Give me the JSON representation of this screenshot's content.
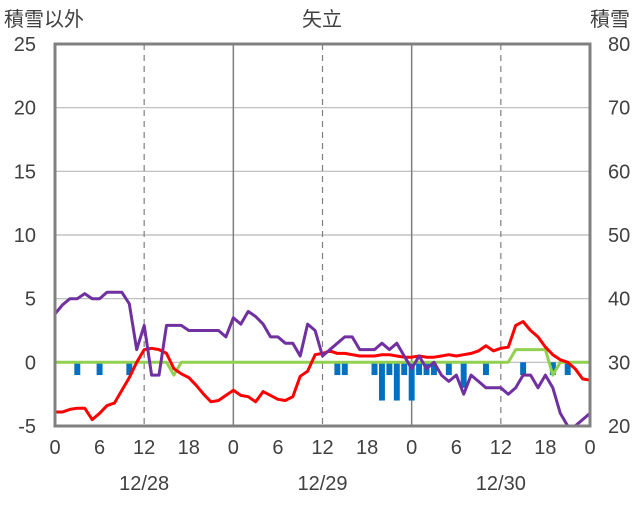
{
  "chart_data": {
    "type": "line",
    "title": "矢立",
    "ylabel_left": "積雪以外",
    "ylabel_right": "積雪",
    "ylim_left": [
      -5,
      25
    ],
    "ylim_right": [
      20,
      80
    ],
    "yticks_left": [
      -5,
      0,
      5,
      10,
      15,
      20,
      25
    ],
    "yticks_right": [
      20,
      30,
      40,
      50,
      60,
      70,
      80
    ],
    "xlim_hours": [
      0,
      72
    ],
    "xtick_labels": [
      "0",
      "6",
      "12",
      "18",
      "0",
      "6",
      "12",
      "18",
      "0",
      "6",
      "12",
      "18",
      "0"
    ],
    "date_labels": [
      {
        "label": "12/28",
        "hour": 12
      },
      {
        "label": "12/29",
        "hour": 36
      },
      {
        "label": "12/30",
        "hour": 60
      }
    ],
    "day_boundaries": [
      24,
      48
    ],
    "dashed_grid_hours": [
      12,
      36,
      60
    ],
    "series": [
      {
        "name": "red",
        "color": "#ff0000",
        "axis": "left",
        "points": [
          [
            0,
            -3.9
          ],
          [
            1,
            -3.9
          ],
          [
            2,
            -3.7
          ],
          [
            3,
            -3.6
          ],
          [
            4,
            -3.6
          ],
          [
            5,
            -4.5
          ],
          [
            6,
            -4.0
          ],
          [
            7,
            -3.4
          ],
          [
            8,
            -3.2
          ],
          [
            9,
            -2.2
          ],
          [
            10,
            -1.2
          ],
          [
            11,
            0.0
          ],
          [
            12,
            1.0
          ],
          [
            13,
            1.1
          ],
          [
            14,
            1.0
          ],
          [
            15,
            0.7
          ],
          [
            16,
            -0.5
          ],
          [
            17,
            -0.9
          ],
          [
            18,
            -1.2
          ],
          [
            19,
            -1.8
          ],
          [
            20,
            -2.5
          ],
          [
            21,
            -3.1
          ],
          [
            22,
            -3.0
          ],
          [
            23,
            -2.6
          ],
          [
            24,
            -2.2
          ],
          [
            25,
            -2.6
          ],
          [
            26,
            -2.7
          ],
          [
            27,
            -3.1
          ],
          [
            28,
            -2.3
          ],
          [
            29,
            -2.6
          ],
          [
            30,
            -2.9
          ],
          [
            31,
            -3.0
          ],
          [
            32,
            -2.7
          ],
          [
            33,
            -1.1
          ],
          [
            34,
            -0.7
          ],
          [
            35,
            0.6
          ],
          [
            36,
            0.7
          ],
          [
            37,
            0.9
          ],
          [
            38,
            0.7
          ],
          [
            39,
            0.7
          ],
          [
            40,
            0.6
          ],
          [
            41,
            0.5
          ],
          [
            42,
            0.5
          ],
          [
            43,
            0.5
          ],
          [
            44,
            0.6
          ],
          [
            45,
            0.6
          ],
          [
            46,
            0.5
          ],
          [
            47,
            0.4
          ],
          [
            48,
            0.4
          ],
          [
            49,
            0.5
          ],
          [
            50,
            0.4
          ],
          [
            51,
            0.4
          ],
          [
            52,
            0.5
          ],
          [
            53,
            0.6
          ],
          [
            54,
            0.5
          ],
          [
            55,
            0.6
          ],
          [
            56,
            0.7
          ],
          [
            57,
            0.9
          ],
          [
            58,
            1.3
          ],
          [
            59,
            0.9
          ],
          [
            60,
            1.1
          ],
          [
            61,
            1.2
          ],
          [
            62,
            2.9
          ],
          [
            63,
            3.2
          ],
          [
            64,
            2.5
          ],
          [
            65,
            2.0
          ],
          [
            66,
            1.2
          ],
          [
            67,
            0.6
          ],
          [
            68,
            0.2
          ],
          [
            69,
            0.0
          ],
          [
            70,
            -0.5
          ],
          [
            71,
            -1.3
          ],
          [
            72,
            -1.4
          ]
        ]
      },
      {
        "name": "purple",
        "color": "#7030a0",
        "axis": "left",
        "points": [
          [
            0,
            3.8
          ],
          [
            1,
            4.5
          ],
          [
            2,
            5.0
          ],
          [
            3,
            5.0
          ],
          [
            4,
            5.4
          ],
          [
            5,
            5.0
          ],
          [
            6,
            5.0
          ],
          [
            7,
            5.5
          ],
          [
            8,
            5.5
          ],
          [
            9,
            5.5
          ],
          [
            10,
            4.6
          ],
          [
            11,
            1.0
          ],
          [
            12,
            2.9
          ],
          [
            13,
            -1.0
          ],
          [
            14,
            -1.0
          ],
          [
            15,
            2.9
          ],
          [
            16,
            2.9
          ],
          [
            17,
            2.9
          ],
          [
            18,
            2.5
          ],
          [
            19,
            2.5
          ],
          [
            20,
            2.5
          ],
          [
            21,
            2.5
          ],
          [
            22,
            2.5
          ],
          [
            23,
            2.0
          ],
          [
            24,
            3.5
          ],
          [
            25,
            3.0
          ],
          [
            26,
            4.0
          ],
          [
            27,
            3.6
          ],
          [
            28,
            3.0
          ],
          [
            29,
            2.0
          ],
          [
            30,
            2.0
          ],
          [
            31,
            1.5
          ],
          [
            32,
            1.5
          ],
          [
            33,
            0.5
          ],
          [
            34,
            3.0
          ],
          [
            35,
            2.5
          ],
          [
            36,
            0.5
          ],
          [
            37,
            1.0
          ],
          [
            38,
            1.5
          ],
          [
            39,
            2.0
          ],
          [
            40,
            2.0
          ],
          [
            41,
            1.0
          ],
          [
            42,
            1.0
          ],
          [
            43,
            1.0
          ],
          [
            44,
            1.5
          ],
          [
            45,
            1.0
          ],
          [
            46,
            1.5
          ],
          [
            47,
            0.5
          ],
          [
            48,
            -0.5
          ],
          [
            49,
            0.5
          ],
          [
            50,
            -0.5
          ],
          [
            51,
            0.0
          ],
          [
            52,
            -1.0
          ],
          [
            53,
            -1.5
          ],
          [
            54,
            -1.0
          ],
          [
            55,
            -2.5
          ],
          [
            56,
            -1.0
          ],
          [
            57,
            -1.5
          ],
          [
            58,
            -2.0
          ],
          [
            59,
            -2.0
          ],
          [
            60,
            -2.0
          ],
          [
            61,
            -2.5
          ],
          [
            62,
            -2.0
          ],
          [
            63,
            -1.0
          ],
          [
            64,
            -1.0
          ],
          [
            65,
            -2.0
          ],
          [
            66,
            -1.0
          ],
          [
            67,
            -2.0
          ],
          [
            68,
            -4.0
          ],
          [
            69,
            -5.0
          ],
          [
            70,
            -5.0
          ],
          [
            71,
            -4.5
          ],
          [
            72,
            -4.0
          ]
        ]
      },
      {
        "name": "green",
        "color": "#92d050",
        "axis": "left",
        "points": [
          [
            0,
            0
          ],
          [
            15,
            0
          ],
          [
            16,
            -1.0
          ],
          [
            17,
            0
          ],
          [
            61,
            0
          ],
          [
            62,
            1.0
          ],
          [
            63,
            1.0
          ],
          [
            64,
            1.0
          ],
          [
            65,
            1.0
          ],
          [
            66,
            1.0
          ],
          [
            67,
            -1.0
          ],
          [
            68,
            0
          ],
          [
            72,
            0
          ]
        ]
      }
    ],
    "bars": {
      "name": "blue",
      "color": "#0070c0",
      "axis": "left",
      "baseline": 0,
      "hours": [
        3,
        6,
        10,
        38,
        39,
        43,
        44,
        45,
        46,
        47,
        48,
        49,
        50,
        51,
        53,
        55,
        58,
        63,
        67,
        69
      ],
      "values": [
        -1,
        -1,
        -1,
        -1,
        -1,
        -1,
        -3,
        -1,
        -3,
        -1,
        -3,
        -1,
        -1,
        -1,
        -1,
        -2,
        -1,
        -1,
        -1,
        -1
      ]
    }
  }
}
